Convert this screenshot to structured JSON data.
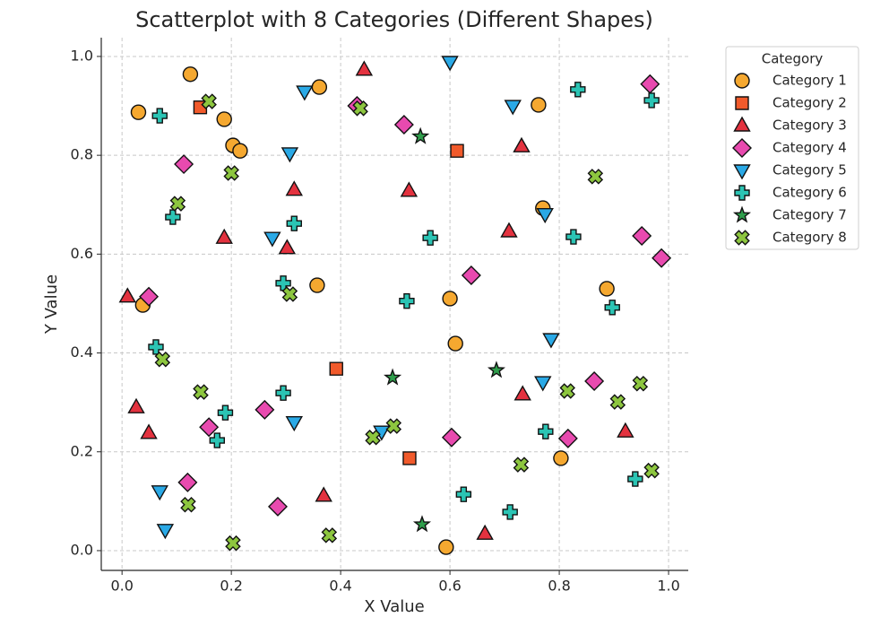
{
  "chart_data": {
    "type": "scatter",
    "title": "Scatterplot with 8 Categories (Different Shapes)",
    "x_label": "X Value",
    "y_label": "Y Value",
    "legend_title": "Category",
    "legend_position": "outside upper right",
    "grid": true,
    "xlim": [
      -0.038,
      1.036
    ],
    "ylim": [
      -0.04,
      1.038
    ],
    "xticks": [
      {
        "value": 0,
        "label": "0.0"
      },
      {
        "value": 0.2,
        "label": "0.2"
      },
      {
        "value": 0.4,
        "label": "0.4"
      },
      {
        "value": 0.6,
        "label": "0.6"
      },
      {
        "value": 0.8,
        "label": "0.8"
      },
      {
        "value": 1,
        "label": "1.0"
      }
    ],
    "yticks": [
      {
        "value": 0,
        "label": "0.0"
      },
      {
        "value": 0.2,
        "label": "0.2"
      },
      {
        "value": 0.4,
        "label": "0.4"
      },
      {
        "value": 0.6,
        "label": "0.6"
      },
      {
        "value": 0.8,
        "label": "0.8"
      },
      {
        "value": 1,
        "label": "1.0"
      }
    ],
    "series": [
      {
        "name": "Category 1",
        "color": "#f5a830",
        "marker": "circle",
        "x": [
          0.03,
          0.125,
          0.187,
          0.203,
          0.216,
          0.361,
          0.357,
          0.038,
          0.6,
          0.61,
          0.762,
          0.77,
          0.887,
          0.803,
          0.593
        ],
        "values": [
          0.887,
          0.964,
          0.873,
          0.82,
          0.809,
          0.938,
          0.537,
          0.497,
          0.51,
          0.419,
          0.902,
          0.693,
          0.53,
          0.187,
          0.007
        ]
      },
      {
        "name": "Category 2",
        "color": "#f15a2b",
        "marker": "square",
        "x": [
          0.143,
          0.613,
          0.392,
          0.526
        ],
        "values": [
          0.897,
          0.809,
          0.368,
          0.187
        ]
      },
      {
        "name": "Category 3",
        "color": "#e3323f",
        "marker": "triangle",
        "x": [
          0.443,
          0.315,
          0.187,
          0.302,
          0.01,
          0.026,
          0.049,
          0.369,
          0.525,
          0.731,
          0.708,
          0.733,
          0.664,
          0.921
        ],
        "values": [
          0.973,
          0.73,
          0.633,
          0.612,
          0.514,
          0.29,
          0.238,
          0.111,
          0.728,
          0.818,
          0.646,
          0.316,
          0.034,
          0.241
        ]
      },
      {
        "name": "Category 4",
        "color": "#e84aaf",
        "marker": "diamond",
        "x": [
          0.43,
          0.516,
          0.113,
          0.049,
          0.639,
          0.966,
          0.951,
          0.987,
          0.864,
          0.816,
          0.603,
          0.261,
          0.159,
          0.12,
          0.285
        ],
        "values": [
          0.9,
          0.862,
          0.782,
          0.514,
          0.557,
          0.944,
          0.637,
          0.592,
          0.343,
          0.227,
          0.229,
          0.285,
          0.25,
          0.138,
          0.089
        ]
      },
      {
        "name": "Category 5",
        "color": "#2aa9e6",
        "marker": "triangle-down",
        "x": [
          0.6,
          0.334,
          0.715,
          0.307,
          0.275,
          0.774,
          0.785,
          0.77,
          0.315,
          0.475,
          0.069,
          0.079
        ],
        "values": [
          0.989,
          0.929,
          0.9,
          0.804,
          0.633,
          0.681,
          0.428,
          0.341,
          0.26,
          0.241,
          0.12,
          0.042
        ]
      },
      {
        "name": "Category 6",
        "color": "#2bc4b4",
        "marker": "plus",
        "x": [
          0.069,
          0.834,
          0.969,
          0.093,
          0.315,
          0.564,
          0.826,
          0.295,
          0.521,
          0.897,
          0.062,
          0.295,
          0.189,
          0.174,
          0.775,
          0.625,
          0.71,
          0.939
        ],
        "values": [
          0.88,
          0.933,
          0.911,
          0.675,
          0.662,
          0.633,
          0.635,
          0.541,
          0.505,
          0.492,
          0.412,
          0.319,
          0.279,
          0.223,
          0.241,
          0.114,
          0.078,
          0.145
        ]
      },
      {
        "name": "Category 7",
        "color": "#2f9e4c",
        "marker": "star",
        "x": [
          0.546,
          0.495,
          0.685,
          0.549
        ],
        "values": [
          0.838,
          0.35,
          0.365,
          0.053
        ]
      },
      {
        "name": "Category 8",
        "color": "#8dc63f",
        "marker": "x",
        "x": [
          0.159,
          0.436,
          0.2,
          0.102,
          0.866,
          0.307,
          0.074,
          0.144,
          0.815,
          0.907,
          0.948,
          0.497,
          0.459,
          0.73,
          0.969,
          0.121,
          0.203,
          0.379
        ],
        "values": [
          0.909,
          0.895,
          0.764,
          0.702,
          0.757,
          0.519,
          0.387,
          0.321,
          0.323,
          0.301,
          0.338,
          0.252,
          0.229,
          0.174,
          0.162,
          0.093,
          0.015,
          0.031
        ]
      }
    ]
  }
}
